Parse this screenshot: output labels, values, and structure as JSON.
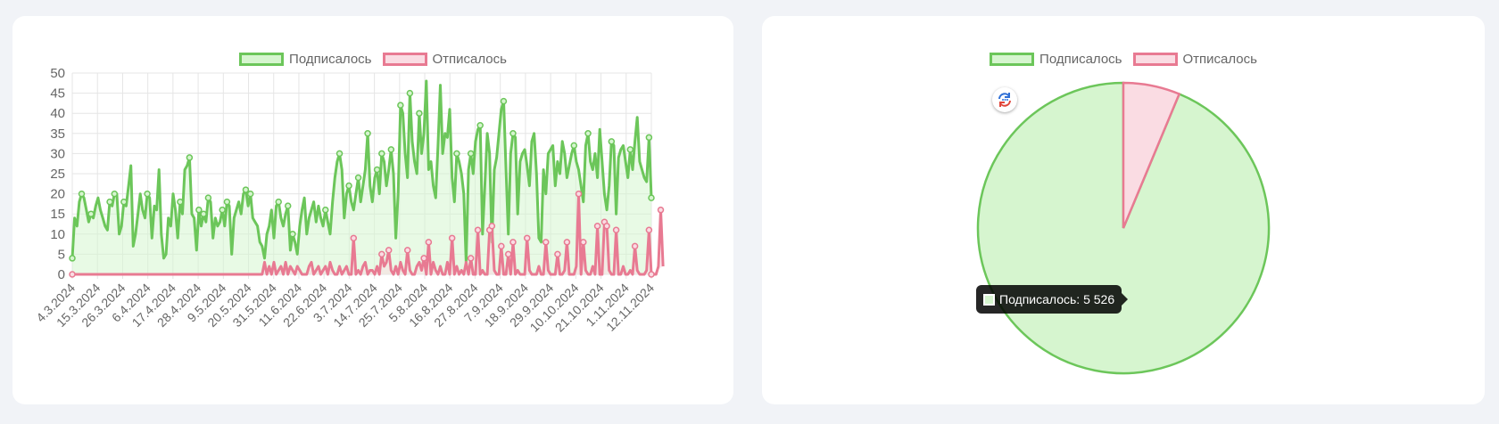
{
  "chart_data": [
    {
      "type": "line",
      "title": "",
      "xlabel": "",
      "ylabel": "",
      "ylim": [
        0,
        50
      ],
      "yticks": [
        0,
        5,
        10,
        15,
        20,
        25,
        30,
        35,
        40,
        45,
        50
      ],
      "x_tick_labels": [
        "4.3.2024",
        "15.3.2024",
        "26.3.2024",
        "6.4.2024",
        "17.4.2024",
        "28.4.2024",
        "9.5.2024",
        "20.5.2024",
        "31.5.2024",
        "11.6.2024",
        "22.6.2024",
        "3.7.2024",
        "14.7.2024",
        "25.7.2024",
        "5.8.2024",
        "16.8.2024",
        "27.8.2024",
        "7.9.2024",
        "18.9.2024",
        "29.9.2024",
        "10.10.2024",
        "21.10.2024",
        "1.11.2024",
        "12.11.2024"
      ],
      "grid": true,
      "legend_position": "top",
      "series": [
        {
          "name": "Подписалось",
          "color": "#6cc65a",
          "fill": "#d6f5cf",
          "values": [
            4,
            14,
            12,
            18,
            20,
            19,
            16,
            13,
            15,
            14,
            17,
            19,
            16,
            14,
            12,
            11,
            18,
            17,
            20,
            20,
            10,
            12,
            18,
            17,
            22,
            27,
            7,
            10,
            15,
            20,
            16,
            14,
            20,
            19,
            9,
            17,
            16,
            26,
            10,
            4,
            5,
            14,
            12,
            20,
            16,
            9,
            18,
            15,
            26,
            27,
            29,
            15,
            14,
            6,
            16,
            12,
            15,
            13,
            19,
            18,
            9,
            14,
            12,
            13,
            16,
            12,
            18,
            17,
            5,
            14,
            16,
            18,
            15,
            20,
            21,
            17,
            20,
            14,
            13,
            12,
            8,
            7,
            4,
            10,
            12,
            16,
            9,
            17,
            18,
            14,
            12,
            15,
            17,
            6,
            10,
            8,
            5,
            12,
            16,
            19,
            10,
            14,
            16,
            18,
            13,
            17,
            14,
            12,
            16,
            13,
            10,
            18,
            24,
            28,
            30,
            26,
            14,
            20,
            22,
            18,
            16,
            20,
            24,
            18,
            22,
            26,
            35,
            22,
            18,
            24,
            26,
            20,
            30,
            28,
            22,
            26,
            31,
            25,
            9,
            20,
            42,
            40,
            30,
            24,
            45,
            33,
            28,
            25,
            40,
            30,
            35,
            48,
            26,
            28,
            22,
            19,
            32,
            47,
            30,
            35,
            34,
            41,
            24,
            18,
            30,
            28,
            25,
            20,
            3,
            26,
            30,
            25,
            33,
            36,
            37,
            10,
            22,
            35,
            30,
            8,
            26,
            29,
            35,
            41,
            43,
            26,
            10,
            30,
            35,
            34,
            15,
            28,
            30,
            31,
            27,
            22,
            33,
            35,
            25,
            9,
            8,
            26,
            20,
            30,
            31,
            32,
            22,
            28,
            25,
            33,
            30,
            24,
            27,
            30,
            32,
            28,
            26,
            22,
            18,
            32,
            35,
            28,
            26,
            30,
            24,
            36,
            28,
            20,
            16,
            22,
            33,
            32,
            15,
            29,
            31,
            32,
            28,
            24,
            31,
            26,
            33,
            39,
            28,
            26,
            24,
            23,
            34,
            19
          ]
        },
        {
          "name": "Отписалось",
          "color": "#e87a92",
          "fill": "#fadce3",
          "values": [
            0,
            0,
            0,
            0,
            0,
            0,
            0,
            0,
            0,
            0,
            0,
            0,
            0,
            0,
            0,
            0,
            0,
            0,
            0,
            0,
            0,
            0,
            0,
            0,
            0,
            0,
            0,
            0,
            0,
            0,
            0,
            0,
            0,
            0,
            0,
            0,
            0,
            0,
            0,
            0,
            0,
            0,
            0,
            0,
            0,
            0,
            0,
            0,
            0,
            0,
            0,
            0,
            0,
            0,
            0,
            0,
            0,
            0,
            0,
            0,
            0,
            0,
            0,
            0,
            0,
            0,
            0,
            0,
            0,
            0,
            0,
            0,
            0,
            0,
            0,
            0,
            0,
            0,
            0,
            0,
            0,
            0,
            3,
            0,
            2,
            0,
            3,
            0,
            1,
            2,
            0,
            3,
            0,
            2,
            1,
            0,
            2,
            1,
            0,
            0,
            0,
            2,
            3,
            0,
            1,
            2,
            0,
            1,
            2,
            0,
            3,
            1,
            0,
            0,
            2,
            0,
            1,
            2,
            0,
            0,
            9,
            0,
            1,
            0,
            2,
            3,
            0,
            1,
            1,
            0,
            2,
            0,
            5,
            2,
            3,
            6,
            1,
            0,
            2,
            0,
            3,
            1,
            0,
            6,
            1,
            0,
            0,
            2,
            3,
            1,
            4,
            0,
            8,
            0,
            3,
            1,
            0,
            2,
            0,
            0,
            3,
            0,
            9,
            0,
            2,
            0,
            1,
            0,
            3,
            0,
            4,
            0,
            0,
            11,
            0,
            1,
            0,
            0,
            11,
            12,
            1,
            0,
            0,
            7,
            0,
            0,
            5,
            0,
            8,
            0,
            1,
            0,
            0,
            0,
            9,
            1,
            0,
            0,
            0,
            2,
            0,
            0,
            8,
            1,
            0,
            0,
            0,
            5,
            0,
            0,
            1,
            8,
            0,
            0,
            0,
            2,
            20,
            0,
            8,
            1,
            0,
            0,
            2,
            0,
            12,
            0,
            0,
            13,
            12,
            1,
            0,
            0,
            11,
            0,
            0,
            2,
            0,
            0,
            1,
            0,
            7,
            1,
            0,
            0,
            0,
            1,
            11,
            0,
            0,
            0,
            2,
            16,
            2
          ]
        }
      ]
    },
    {
      "type": "pie",
      "title": "",
      "legend_position": "top",
      "categories": [
        "Подписалось",
        "Отписалось"
      ],
      "values": [
        5526,
        370
      ],
      "colors": [
        "#6cc65a",
        "#e87a92"
      ],
      "fills": [
        "#d6f5cf",
        "#fadce3"
      ],
      "tooltip": {
        "label": "Подписалось",
        "value": "5 526",
        "text": "Подписалось: 5 526"
      }
    }
  ],
  "legend": {
    "subscribed": "Подписалось",
    "unsubscribed": "Отписалось"
  },
  "tooltip_text": "Подписалось: 5 526",
  "icons": {
    "sync": "sync-icon"
  }
}
